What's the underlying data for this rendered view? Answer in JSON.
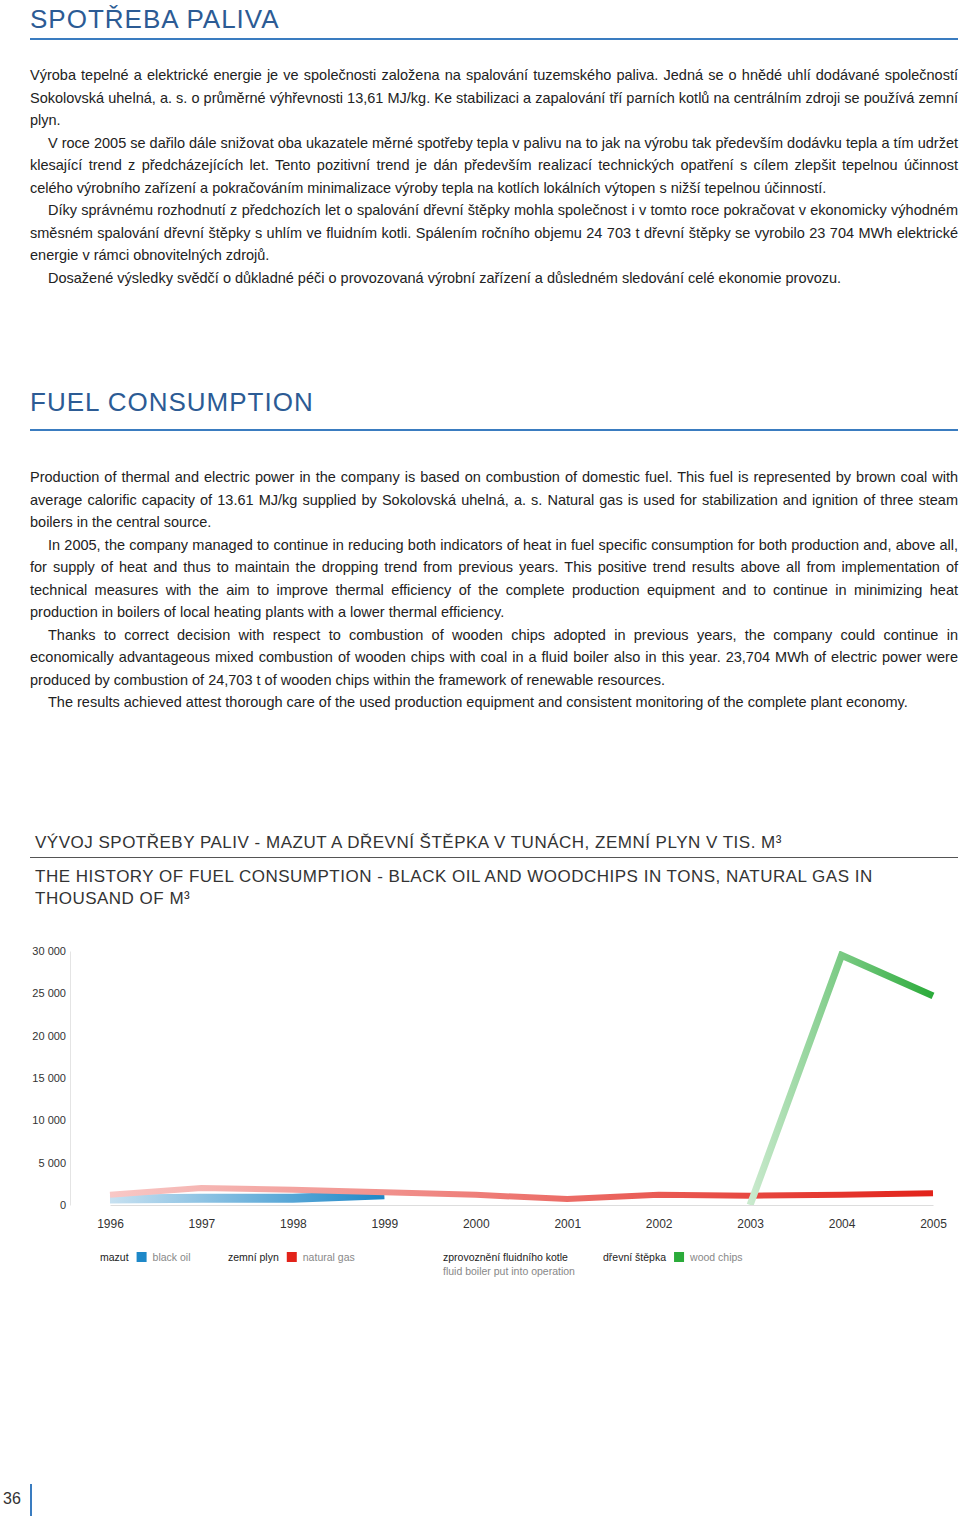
{
  "document": {
    "heading_cz": "SPOTŘEBA PALIVA",
    "paragraphs_cz": [
      "Výroba tepelné a elektrické energie je ve společnosti založena na spalování tuzemského paliva. Jedná se o hnědé uhlí dodávané společností Sokolovská uhelná, a. s. o průměrné výhřevnosti 13,61 MJ/kg. Ke stabilizaci a zapalování tří parních kotlů na centrálním zdroji se používá zemní plyn.",
      "V roce 2005 se dařilo dále snižovat oba ukazatele měrné spotřeby tepla v palivu na to jak na výrobu tak především dodávku tepla a tím udržet klesající trend z předcházejících let. Tento pozitivní trend je dán především realizací technických opatření s cílem zlepšit tepelnou účinnost celého výrobního zařízení a pokračováním minimalizace výroby tepla na kotlích lokálních výtopen s nižší tepelnou účinností.",
      "Díky správnému rozhodnutí z předchozích let o spalování dřevní štěpky mohla společnost i v tomto roce pokračovat v ekonomicky výhodném směsném spalování dřevní štěpky s uhlím ve fluidním kotli. Spálením ročního objemu 24 703 t dřevní štěpky se vyrobilo 23 704 MWh elektrické energie v rámci obnovitelných zdrojů.",
      "Dosažené výsledky svědčí o důkladné péči o provozovaná výrobní zařízení a důsledném sledování celé ekonomie provozu."
    ],
    "heading_en": "FUEL CONSUMPTION",
    "paragraphs_en": [
      "Production of thermal and electric power in the company is based on combustion of domestic fuel. This fuel is represented by brown coal with average calorific capacity of 13.61 MJ/kg supplied by Sokolovská uhelná, a. s. Natural gas is used for stabilization and ignition of three steam boilers in the central source.",
      "In 2005, the company managed to continue in reducing both indicators of heat in fuel specific consumption for both production and, above all, for supply of heat and thus to maintain the dropping trend from previous years. This positive trend results above all from implementation of technical measures with the aim to improve thermal efficiency of the complete production equipment and to continue in minimizing heat production in boilers of local heating plants with a lower thermal efficiency.",
      "Thanks to correct decision with respect to combustion of wooden chips adopted in previous years, the company could continue in economically advantageous mixed combustion of wooden chips with coal in a fluid boiler also in this year. 23,704 MWh of electric power were produced by combustion of 24,703 t of wooden chips within the framework of renewable resources.",
      "The results achieved attest thorough care of the used production equipment and consistent monitoring of the complete plant economy."
    ],
    "page_number": "36"
  },
  "chart_data": {
    "type": "line",
    "title": "VÝVOJ SPOTŘEBY PALIV - MAZUT A DŘEVNÍ ŠTĚPKA V TUNÁCH, ZEMNÍ PLYN V TIS. M³",
    "subtitle": "THE HISTORY OF FUEL CONSUMPTION - BLACK OIL AND WOODCHIPS IN TONS, NATURAL GAS IN THOUSAND OF M³",
    "categories": [
      "1996",
      "1997",
      "1998",
      "1999",
      "2000",
      "2001",
      "2002",
      "2003",
      "2004",
      "2005"
    ],
    "series": [
      {
        "name": "mazut",
        "name_en": "black oil",
        "color": "#1e88c8",
        "values": [
          700,
          800,
          800,
          1200,
          null,
          null,
          null,
          null,
          null,
          null
        ]
      },
      {
        "name": "zemní plyn",
        "name_en": "natural gas",
        "color": "#e2231a",
        "values": [
          1200,
          2000,
          1800,
          1500,
          1200,
          700,
          1200,
          1100,
          1200,
          1400
        ]
      },
      {
        "name": "dřevní štěpka",
        "name_en": "wood chips",
        "color": "#2bab3a",
        "values": [
          null,
          null,
          null,
          null,
          null,
          null,
          null,
          0,
          29500,
          24700
        ]
      }
    ],
    "annotations": [
      {
        "text": "zprovoznění fluidního kotle",
        "text_en": "fluid boiler put into operation"
      }
    ],
    "ylim": [
      0,
      30000
    ],
    "yticks": [
      0,
      {
        "value": 5000,
        "label": "5 000"
      },
      {
        "value": 10000,
        "label": "10 000"
      },
      {
        "value": 15000,
        "label": "15 000"
      },
      {
        "value": 20000,
        "label": "20 000"
      },
      {
        "value": 25000,
        "label": "25 000"
      },
      {
        "value": 30000,
        "label": "30 000"
      }
    ],
    "grid": false,
    "legend": "bottom"
  }
}
